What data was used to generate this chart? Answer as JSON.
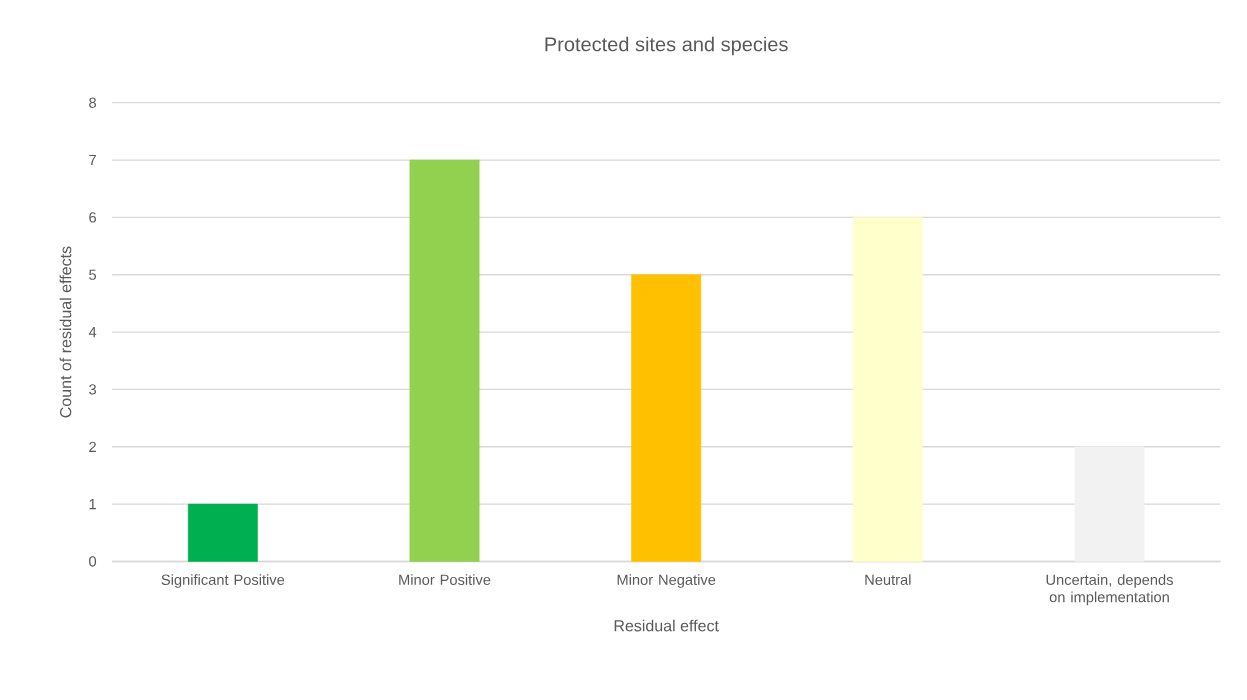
{
  "chart_data": {
    "type": "bar",
    "title": "Protected sites and species",
    "xlabel": "Residual effect",
    "ylabel": "Count of residual effects",
    "categories": [
      "Significant Positive",
      "Minor Positive",
      "Minor Negative",
      "Neutral",
      "Uncertain, depends on implementation"
    ],
    "values": [
      1,
      7,
      5,
      6,
      2
    ],
    "colors": [
      "#00b050",
      "#92d050",
      "#ffc000",
      "#ffffcc",
      "#f2f2f2"
    ],
    "ylim": [
      0,
      8
    ],
    "yticks": [
      0,
      1,
      2,
      3,
      4,
      5,
      6,
      7,
      8
    ],
    "grid": "y"
  }
}
